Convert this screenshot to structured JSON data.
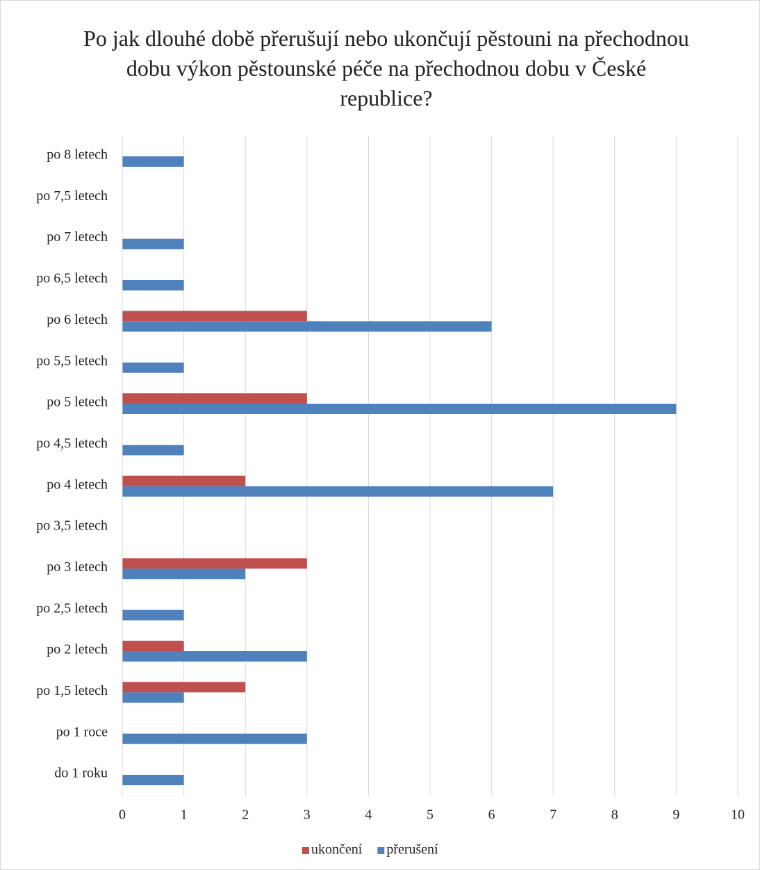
{
  "chart_data": {
    "type": "bar",
    "orientation": "horizontal",
    "title": "Po jak dlouhé době přerušují nebo ukončují pěstouni na přechodnou dobu výkon pěstounské péče na přechodnou dobu v České republice?",
    "categories": [
      "do 1 roku",
      "po 1 roce",
      "po 1,5 letech",
      "po 2 letech",
      "po 2,5 letech",
      "po 3 letech",
      "po 3,5 letech",
      "po 4 letech",
      "po 4,5 letech",
      "po 5 letech",
      "po 5,5 letech",
      "po 6 letech",
      "po 6,5 letech",
      "po 7 letech",
      "po 7,5 letech",
      "po 8 letech"
    ],
    "series": [
      {
        "name": "ukončení",
        "color": "#c0504d",
        "values": [
          0,
          0,
          2,
          1,
          0,
          3,
          0,
          2,
          0,
          3,
          0,
          3,
          0,
          0,
          0,
          0
        ]
      },
      {
        "name": "přerušení",
        "color": "#4f81bd",
        "values": [
          1,
          3,
          1,
          3,
          1,
          2,
          0,
          7,
          1,
          9,
          1,
          6,
          1,
          1,
          0,
          1
        ]
      }
    ],
    "xlim": [
      0,
      10
    ],
    "xticks": [
      0,
      1,
      2,
      3,
      4,
      5,
      6,
      7,
      8,
      9,
      10
    ],
    "grid": true,
    "legend": "bottom"
  }
}
